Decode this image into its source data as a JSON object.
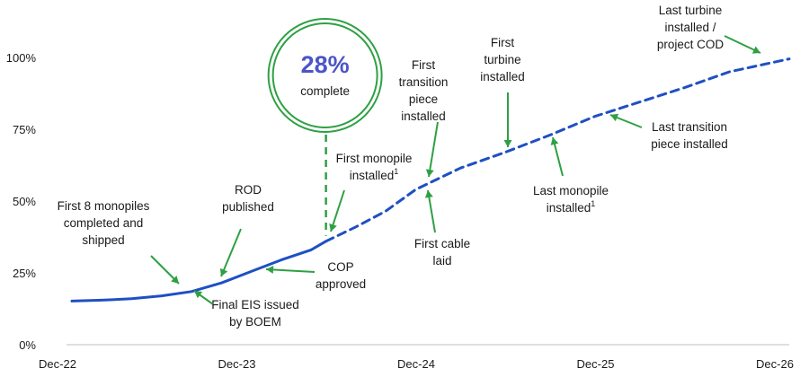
{
  "chart_data": {
    "type": "line",
    "xlabel": "",
    "ylabel": "",
    "x_ticks": [
      "Dec-22",
      "Dec-23",
      "Dec-24",
      "Dec-25",
      "Dec-26"
    ],
    "y_ticks": [
      "0%",
      "25%",
      "50%",
      "75%",
      "100%"
    ],
    "ylim": [
      0,
      100
    ],
    "xlim": [
      "2022-12",
      "2026-12"
    ],
    "grid": false,
    "legend": "none",
    "series": [
      {
        "style": "solid",
        "color": "#1f4fc4",
        "points": [
          {
            "x": "2022-12",
            "y": 15.2
          },
          {
            "x": "2023-02",
            "y": 15.5
          },
          {
            "x": "2023-04",
            "y": 16.0
          },
          {
            "x": "2023-06",
            "y": 17.0
          },
          {
            "x": "2023-08",
            "y": 18.5
          },
          {
            "x": "2023-10",
            "y": 21.5
          },
          {
            "x": "2023-12",
            "y": 25.5
          },
          {
            "x": "2024-02",
            "y": 29.5
          },
          {
            "x": "2024-04",
            "y": 33.0
          },
          {
            "x": "2024-05",
            "y": 36.0
          }
        ]
      },
      {
        "style": "dashed",
        "color": "#1f4fc4",
        "points": [
          {
            "x": "2024-05",
            "y": 36.0
          },
          {
            "x": "2024-07",
            "y": 41.0
          },
          {
            "x": "2024-09",
            "y": 46.5
          },
          {
            "x": "2024-11",
            "y": 54.0
          },
          {
            "x": "2025-02",
            "y": 61.5
          },
          {
            "x": "2025-05",
            "y": 67.0
          },
          {
            "x": "2025-08",
            "y": 73.0
          },
          {
            "x": "2025-11",
            "y": 79.5
          },
          {
            "x": "2026-02",
            "y": 84.5
          },
          {
            "x": "2026-05",
            "y": 89.5
          },
          {
            "x": "2026-08",
            "y": 95.0
          },
          {
            "x": "2026-12",
            "y": 99.5
          }
        ]
      }
    ]
  },
  "progress": {
    "value": "28%",
    "label": "complete",
    "ring_color": "#2ea043",
    "text_color": "#4b55c8",
    "at": "2024-05"
  },
  "annotations": [
    {
      "id": "first-8-monopiles",
      "lines": [
        "First 8 monopiles",
        "completed and",
        "shipped"
      ],
      "target": "2023-08"
    },
    {
      "id": "rod-published",
      "lines": [
        "ROD",
        "published"
      ],
      "target": "2023-09"
    },
    {
      "id": "final-eis",
      "lines": [
        "Final EIS issued",
        "by BOEM"
      ],
      "target": "2023-08"
    },
    {
      "id": "cop-approved",
      "lines": [
        "COP",
        "approved"
      ],
      "target": "2024-01"
    },
    {
      "id": "first-monopile",
      "lines": [
        "First monopile",
        "installed¹"
      ],
      "target": "2024-05"
    },
    {
      "id": "first-transition-piece",
      "lines": [
        "First",
        "transition",
        "piece",
        "installed"
      ],
      "target": "2024-11"
    },
    {
      "id": "first-cable",
      "lines": [
        "First cable",
        "laid"
      ],
      "target": "2024-11"
    },
    {
      "id": "first-turbine",
      "lines": [
        "First",
        "turbine",
        "installed"
      ],
      "target": "2025-05"
    },
    {
      "id": "last-monopile",
      "lines": [
        "Last monopile",
        "installed¹"
      ],
      "target": "2025-07"
    },
    {
      "id": "last-transition-piece",
      "lines": [
        "Last transition",
        "piece installed"
      ],
      "target": "2025-12"
    },
    {
      "id": "last-turbine",
      "lines": [
        "Last turbine",
        "installed /",
        "project COD"
      ],
      "target": "2026-09"
    }
  ]
}
